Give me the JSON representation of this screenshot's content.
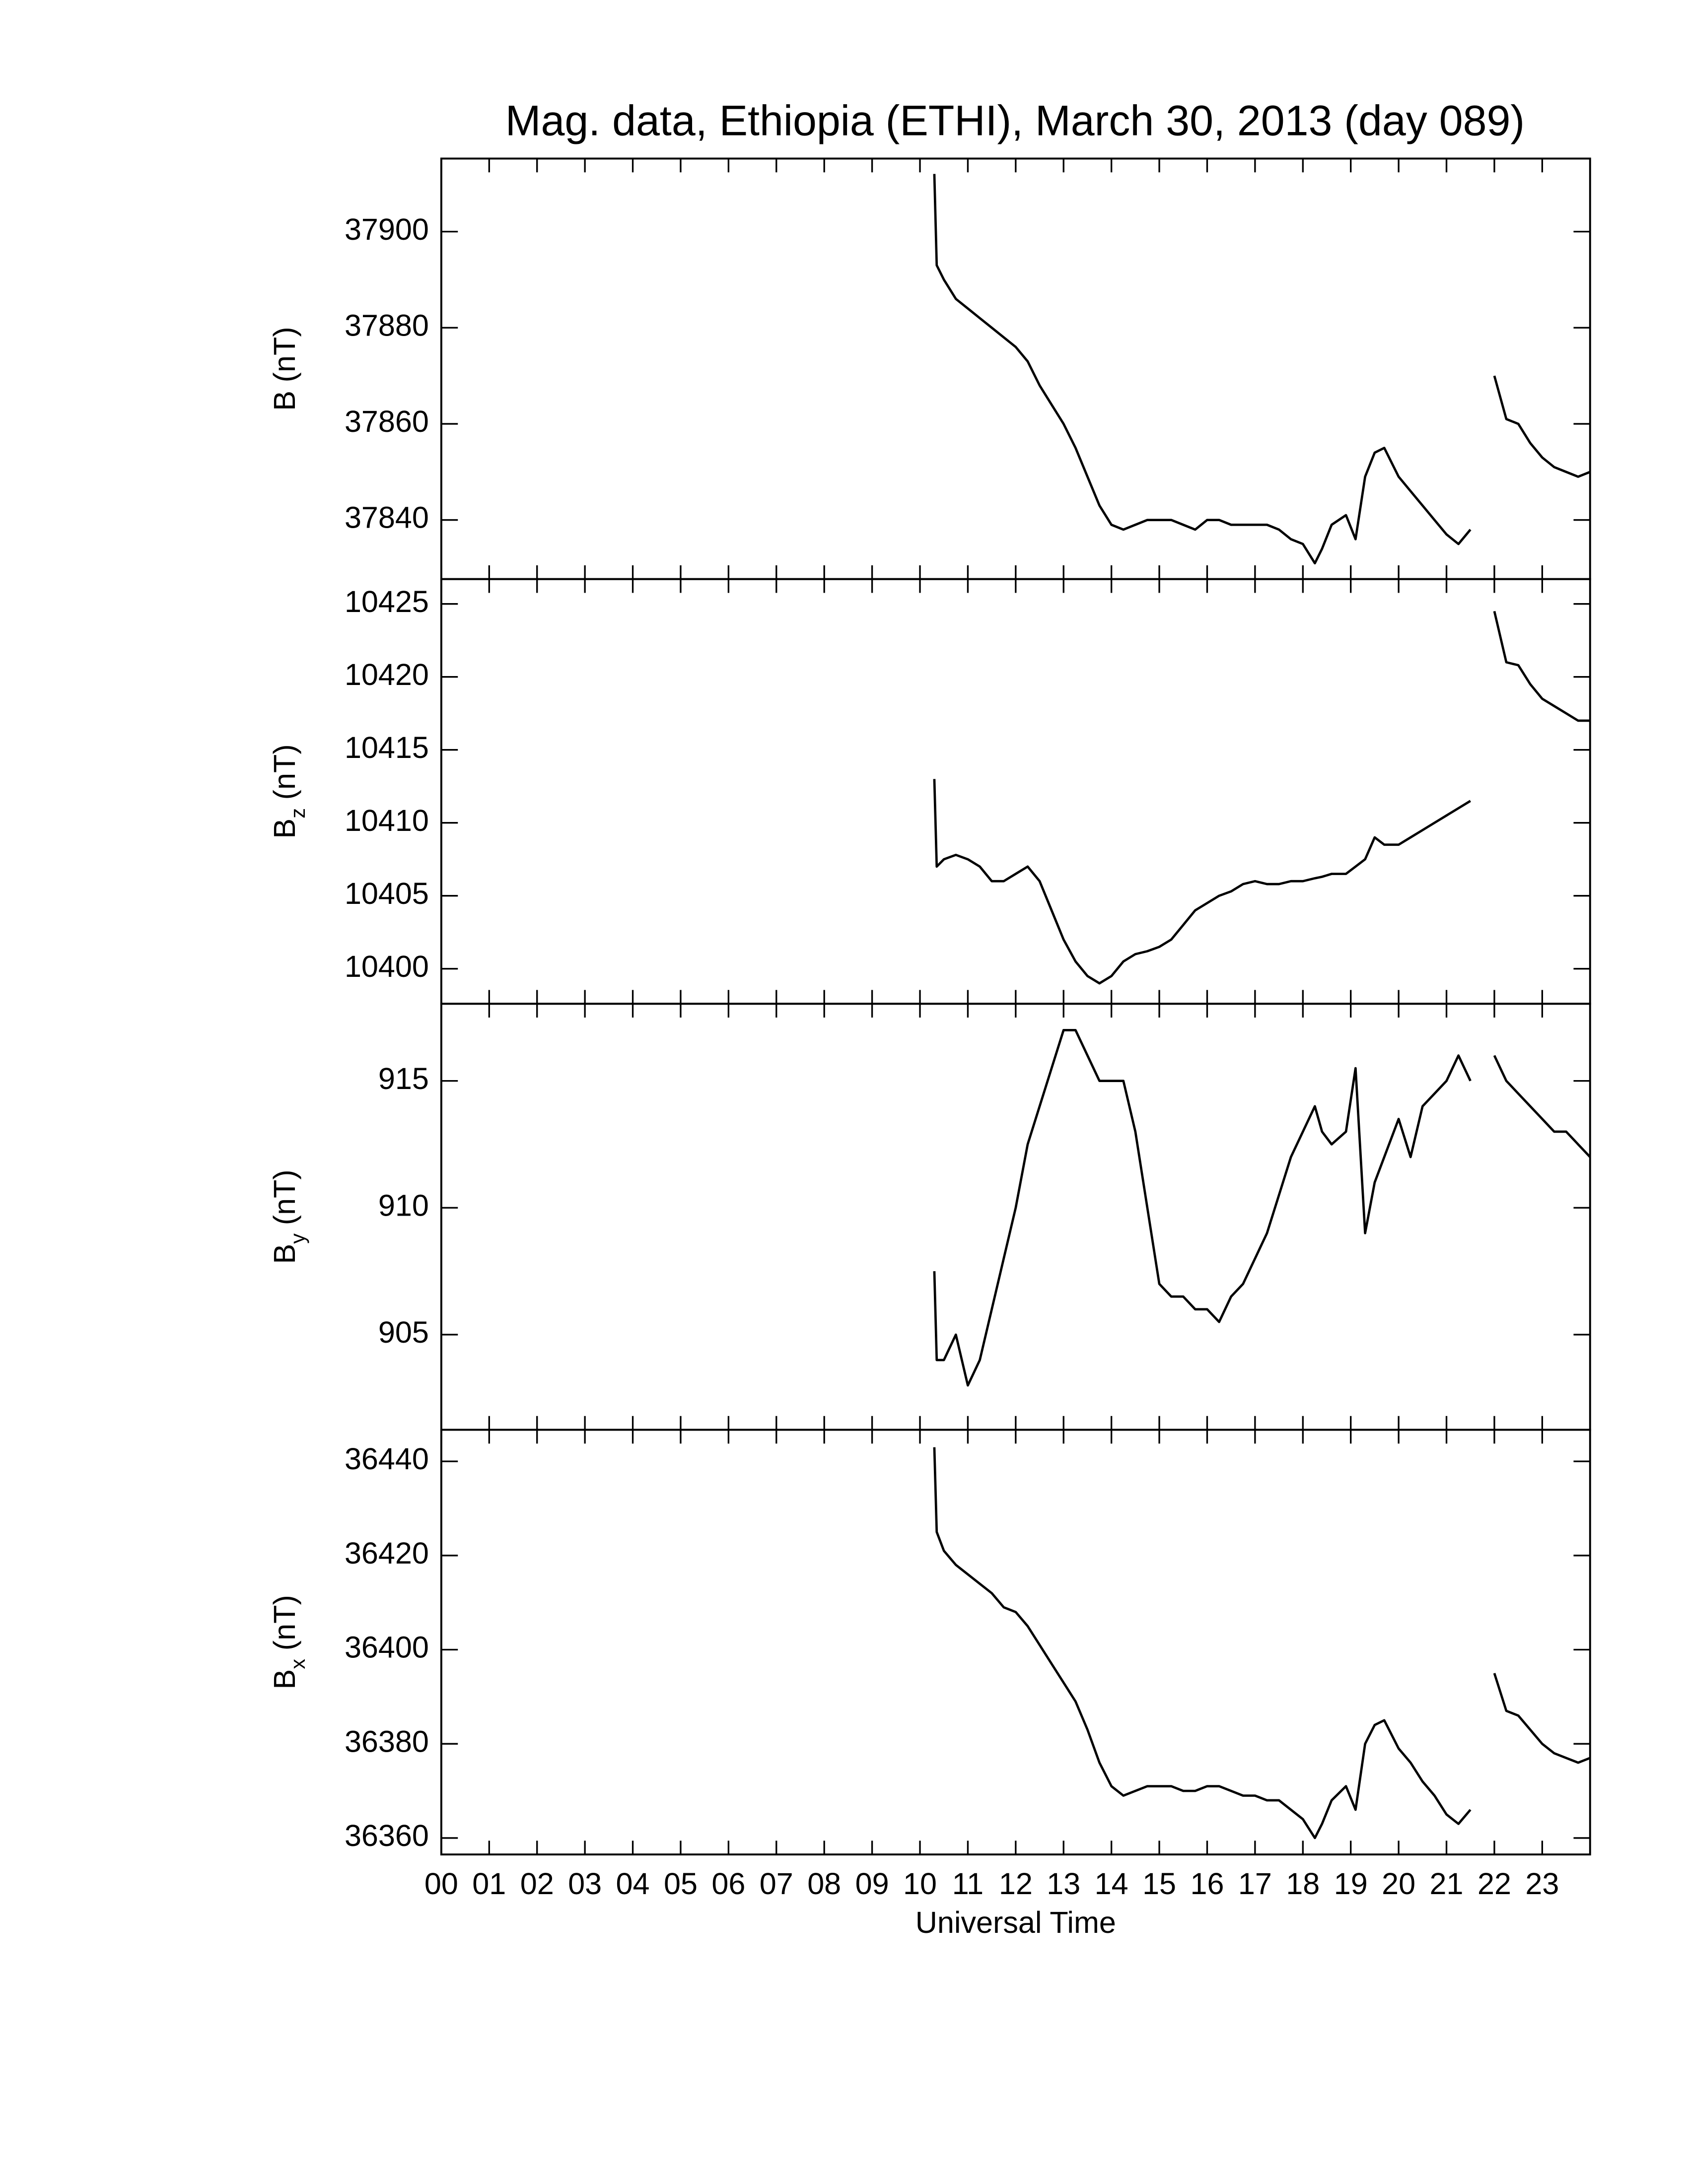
{
  "chart_data": [
    {
      "type": "line",
      "title": "Mag. data, Ethiopia (ETHI), March 30, 2013 (day 089)",
      "ylabel": {
        "base": "B",
        "unit": "(nT)"
      },
      "xlim": [
        0,
        24
      ],
      "ylim": [
        37827.7,
        37915.2
      ],
      "yticks": [
        37840,
        37860,
        37880,
        37900
      ],
      "x": [
        10.3,
        10.35,
        10.5,
        10.75,
        11,
        11.25,
        11.5,
        11.75,
        12,
        12.25,
        12.5,
        12.75,
        13,
        13.25,
        13.5,
        13.75,
        14,
        14.25,
        14.5,
        14.75,
        15,
        15.25,
        15.5,
        15.75,
        16,
        16.25,
        16.5,
        16.75,
        17,
        17.25,
        17.5,
        17.75,
        18,
        18.25,
        18.4,
        18.6,
        18.9,
        19.1,
        19.3,
        19.5,
        19.7,
        20,
        20.25,
        20.5,
        20.75,
        21,
        21.25,
        21.5,
        21.75,
        22,
        22.25,
        22.5,
        22.75,
        23,
        23.25,
        23.5,
        23.75,
        24
      ],
      "series": [
        {
          "color": "#000000",
          "values": [
            37912,
            37893,
            37890,
            37886,
            37884,
            37882,
            37880,
            37878,
            37876,
            37873,
            37868,
            37864,
            37860,
            37855,
            37849,
            37843,
            37839,
            37838,
            37839,
            37840,
            37840,
            37840,
            37839,
            37838,
            37840,
            37840,
            37839,
            37839,
            37839,
            37839,
            37838,
            37836,
            37835,
            37831,
            37834,
            37839,
            37841,
            37836,
            37849,
            37854,
            37855,
            37849,
            37846,
            37843,
            37840,
            37837,
            37835,
            37838,
            null,
            37870,
            37861,
            37860,
            37856,
            37853,
            37851,
            37850,
            37849,
            37850
          ]
        }
      ]
    },
    {
      "type": "line",
      "ylabel": {
        "base": "B",
        "sub": "z",
        "unit": "(nT)"
      },
      "xlim": [
        0,
        24
      ],
      "ylim": [
        10397.6,
        10426.7
      ],
      "yticks": [
        10400,
        10405,
        10410,
        10415,
        10420,
        10425
      ],
      "x": [
        10.3,
        10.35,
        10.5,
        10.75,
        11,
        11.25,
        11.5,
        11.75,
        12,
        12.25,
        12.5,
        12.75,
        13,
        13.25,
        13.5,
        13.75,
        14,
        14.25,
        14.5,
        14.75,
        15,
        15.25,
        15.5,
        15.75,
        16,
        16.25,
        16.5,
        16.75,
        17,
        17.25,
        17.5,
        17.75,
        18,
        18.25,
        18.4,
        18.6,
        18.9,
        19.1,
        19.3,
        19.5,
        19.7,
        20,
        20.25,
        20.5,
        20.75,
        21,
        21.25,
        21.5,
        21.75,
        22,
        22.25,
        22.5,
        22.75,
        23,
        23.25,
        23.5,
        23.75,
        24
      ],
      "series": [
        {
          "color": "#000000",
          "values": [
            10413,
            10407,
            10407.5,
            10407.8,
            10407.5,
            10407,
            10406,
            10406,
            10406.5,
            10407,
            10406,
            10404,
            10402,
            10400.5,
            10399.5,
            10399,
            10399.5,
            10400.5,
            10401,
            10401.2,
            10401.5,
            10402,
            10403,
            10404,
            10404.5,
            10405,
            10405.3,
            10405.8,
            10406,
            10405.8,
            10405.8,
            10406,
            10406,
            10406.2,
            10406.3,
            10406.5,
            10406.5,
            10407,
            10407.5,
            10409,
            10408.5,
            10408.5,
            10409,
            10409.5,
            10410,
            10410.5,
            10411,
            10411.5,
            null,
            10424.5,
            10421,
            10420.8,
            10419.5,
            10418.5,
            10418,
            10417.5,
            10417,
            10417
          ]
        }
      ]
    },
    {
      "type": "line",
      "ylabel": {
        "base": "B",
        "sub": "y",
        "unit": "(nT)"
      },
      "xlim": [
        0,
        24
      ],
      "ylim": [
        901.25,
        918.04
      ],
      "yticks": [
        905,
        910,
        915
      ],
      "x": [
        10.3,
        10.35,
        10.5,
        10.75,
        11,
        11.25,
        11.5,
        11.75,
        12,
        12.25,
        12.5,
        12.75,
        13,
        13.25,
        13.5,
        13.75,
        14,
        14.25,
        14.5,
        14.75,
        15,
        15.25,
        15.5,
        15.75,
        16,
        16.25,
        16.5,
        16.75,
        17,
        17.25,
        17.5,
        17.75,
        18,
        18.25,
        18.4,
        18.6,
        18.9,
        19.1,
        19.3,
        19.5,
        19.7,
        20,
        20.25,
        20.5,
        20.75,
        21,
        21.25,
        21.5,
        21.75,
        22,
        22.25,
        22.5,
        22.75,
        23,
        23.25,
        23.5,
        23.75,
        24
      ],
      "series": [
        {
          "color": "#000000",
          "values": [
            907.5,
            904,
            904,
            905,
            903,
            904,
            906,
            908,
            910,
            912.5,
            914,
            915.5,
            917,
            917,
            916,
            915,
            915,
            915,
            913,
            910,
            907,
            906.5,
            906.5,
            906,
            906,
            905.5,
            906.5,
            907,
            908,
            909,
            910.5,
            912,
            913,
            914,
            913,
            912.5,
            913,
            915.5,
            909,
            911,
            912,
            913.5,
            912,
            914,
            914.5,
            915,
            916,
            915,
            null,
            916,
            915,
            914.5,
            914,
            913.5,
            913,
            913,
            912.5,
            912
          ]
        }
      ]
    },
    {
      "type": "line",
      "ylabel": {
        "base": "B",
        "sub": "x",
        "unit": "(nT)"
      },
      "xlabel": "Universal Time",
      "xlim": [
        0,
        24
      ],
      "ylim": [
        36356.5,
        36446.7
      ],
      "yticks": [
        36360,
        36380,
        36400,
        36420,
        36440
      ],
      "xticks": [
        {
          "value": 0,
          "label": "00"
        },
        {
          "value": 1,
          "label": "01"
        },
        {
          "value": 2,
          "label": "02"
        },
        {
          "value": 3,
          "label": "03"
        },
        {
          "value": 4,
          "label": "04"
        },
        {
          "value": 5,
          "label": "05"
        },
        {
          "value": 6,
          "label": "06"
        },
        {
          "value": 7,
          "label": "07"
        },
        {
          "value": 8,
          "label": "08"
        },
        {
          "value": 9,
          "label": "09"
        },
        10,
        11,
        12,
        13,
        14,
        15,
        16,
        17,
        18,
        19,
        20,
        21,
        22,
        23
      ],
      "x": [
        10.3,
        10.35,
        10.5,
        10.75,
        11,
        11.25,
        11.5,
        11.75,
        12,
        12.25,
        12.5,
        12.75,
        13,
        13.25,
        13.5,
        13.75,
        14,
        14.25,
        14.5,
        14.75,
        15,
        15.25,
        15.5,
        15.75,
        16,
        16.25,
        16.5,
        16.75,
        17,
        17.25,
        17.5,
        17.75,
        18,
        18.25,
        18.4,
        18.6,
        18.9,
        19.1,
        19.3,
        19.5,
        19.7,
        20,
        20.25,
        20.5,
        20.75,
        21,
        21.25,
        21.5,
        21.75,
        22,
        22.25,
        22.5,
        22.75,
        23,
        23.25,
        23.5,
        23.75,
        24
      ],
      "series": [
        {
          "color": "#000000",
          "values": [
            36443,
            36425,
            36421,
            36418,
            36416,
            36414,
            36412,
            36409,
            36408,
            36405,
            36401,
            36397,
            36393,
            36389,
            36383,
            36376,
            36371,
            36369,
            36370,
            36371,
            36371,
            36371,
            36370,
            36370,
            36371,
            36371,
            36370,
            36369,
            36369,
            36368,
            36368,
            36366,
            36364,
            36360,
            36363,
            36368,
            36371,
            36366,
            36380,
            36384,
            36385,
            36379,
            36376,
            36372,
            36369,
            36365,
            36363,
            36366,
            null,
            36395,
            36387,
            36386,
            36383,
            36380,
            36378,
            36377,
            36376,
            36377
          ]
        }
      ]
    }
  ]
}
